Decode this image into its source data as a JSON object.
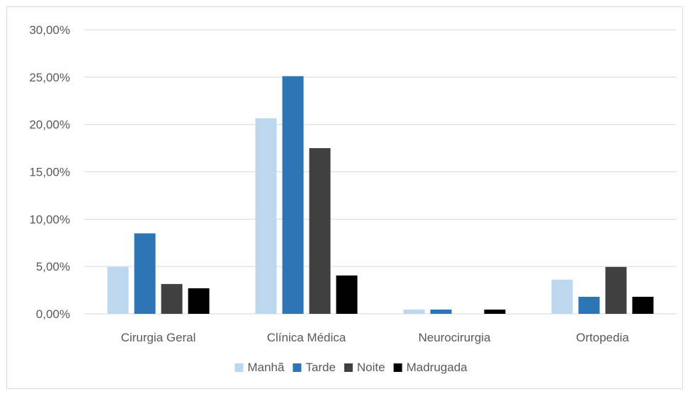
{
  "chart_data": {
    "type": "bar",
    "categories": [
      "Cirurgia Geral",
      "Clínica Médica",
      "Neurocirurgia",
      "Ortopedia"
    ],
    "series": [
      {
        "name": "Manhã",
        "color": "#bdd7ee",
        "values": [
          4.95,
          20.65,
          0.45,
          3.6
        ]
      },
      {
        "name": "Tarde",
        "color": "#2e75b6",
        "values": [
          8.5,
          25.1,
          0.45,
          1.8
        ]
      },
      {
        "name": "Noite",
        "color": "#404040",
        "values": [
          3.15,
          17.5,
          0.0,
          4.95
        ]
      },
      {
        "name": "Madrugada",
        "color": "#000000",
        "values": [
          2.7,
          4.05,
          0.45,
          1.8
        ]
      }
    ],
    "y_ticks": [
      "0,00%",
      "5,00%",
      "10,00%",
      "15,00%",
      "20,00%",
      "25,00%",
      "30,00%"
    ],
    "ylim": [
      0,
      30
    ],
    "grid": true,
    "legend_position": "bottom",
    "title": "",
    "xlabel": "",
    "ylabel": ""
  }
}
